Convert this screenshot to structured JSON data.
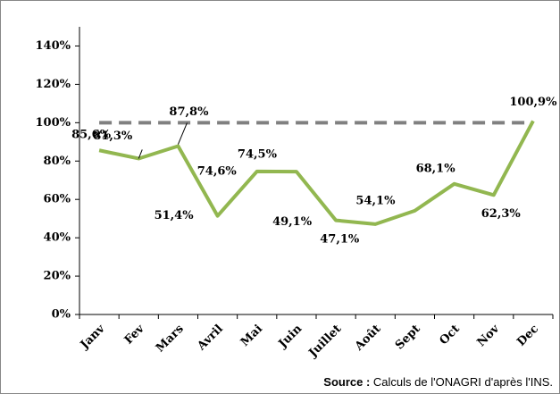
{
  "chart_data": {
    "type": "line",
    "categories": [
      "Janv",
      "Fev",
      "Mars",
      "Avril",
      "Mai",
      "Juin",
      "Juillet",
      "Août",
      "Sept",
      "Oct",
      "Nov",
      "Dec"
    ],
    "series": [
      {
        "color": "#92b750",
        "values": [
          85.6,
          81.3,
          87.8,
          51.4,
          74.6,
          74.5,
          49.1,
          47.1,
          54.1,
          68.1,
          62.3,
          100.9
        ],
        "value_labels": [
          "85,6%",
          "81,3%",
          "87,8%",
          "51,4%",
          "74,6%",
          "74,5%",
          "49,1%",
          "47,1%",
          "54,1%",
          "68,1%",
          "62,3%",
          "100,9%"
        ]
      }
    ],
    "reference_line": {
      "value": 100,
      "color": "#808080"
    },
    "ylim": [
      0,
      150
    ],
    "yticks": [
      {
        "value": 0,
        "label": "0%"
      },
      {
        "value": 20,
        "label": "20%"
      },
      {
        "value": 40,
        "label": "40%"
      },
      {
        "value": 60,
        "label": "60%"
      },
      {
        "value": 80,
        "label": "80%"
      },
      {
        "value": 100,
        "label": "100%"
      },
      {
        "value": 120,
        "label": "120%"
      },
      {
        "value": 140,
        "label": "140%"
      }
    ],
    "source": {
      "label": "Source :",
      "text": "Calculs de l'ONAGRI d'après l'INS."
    }
  }
}
